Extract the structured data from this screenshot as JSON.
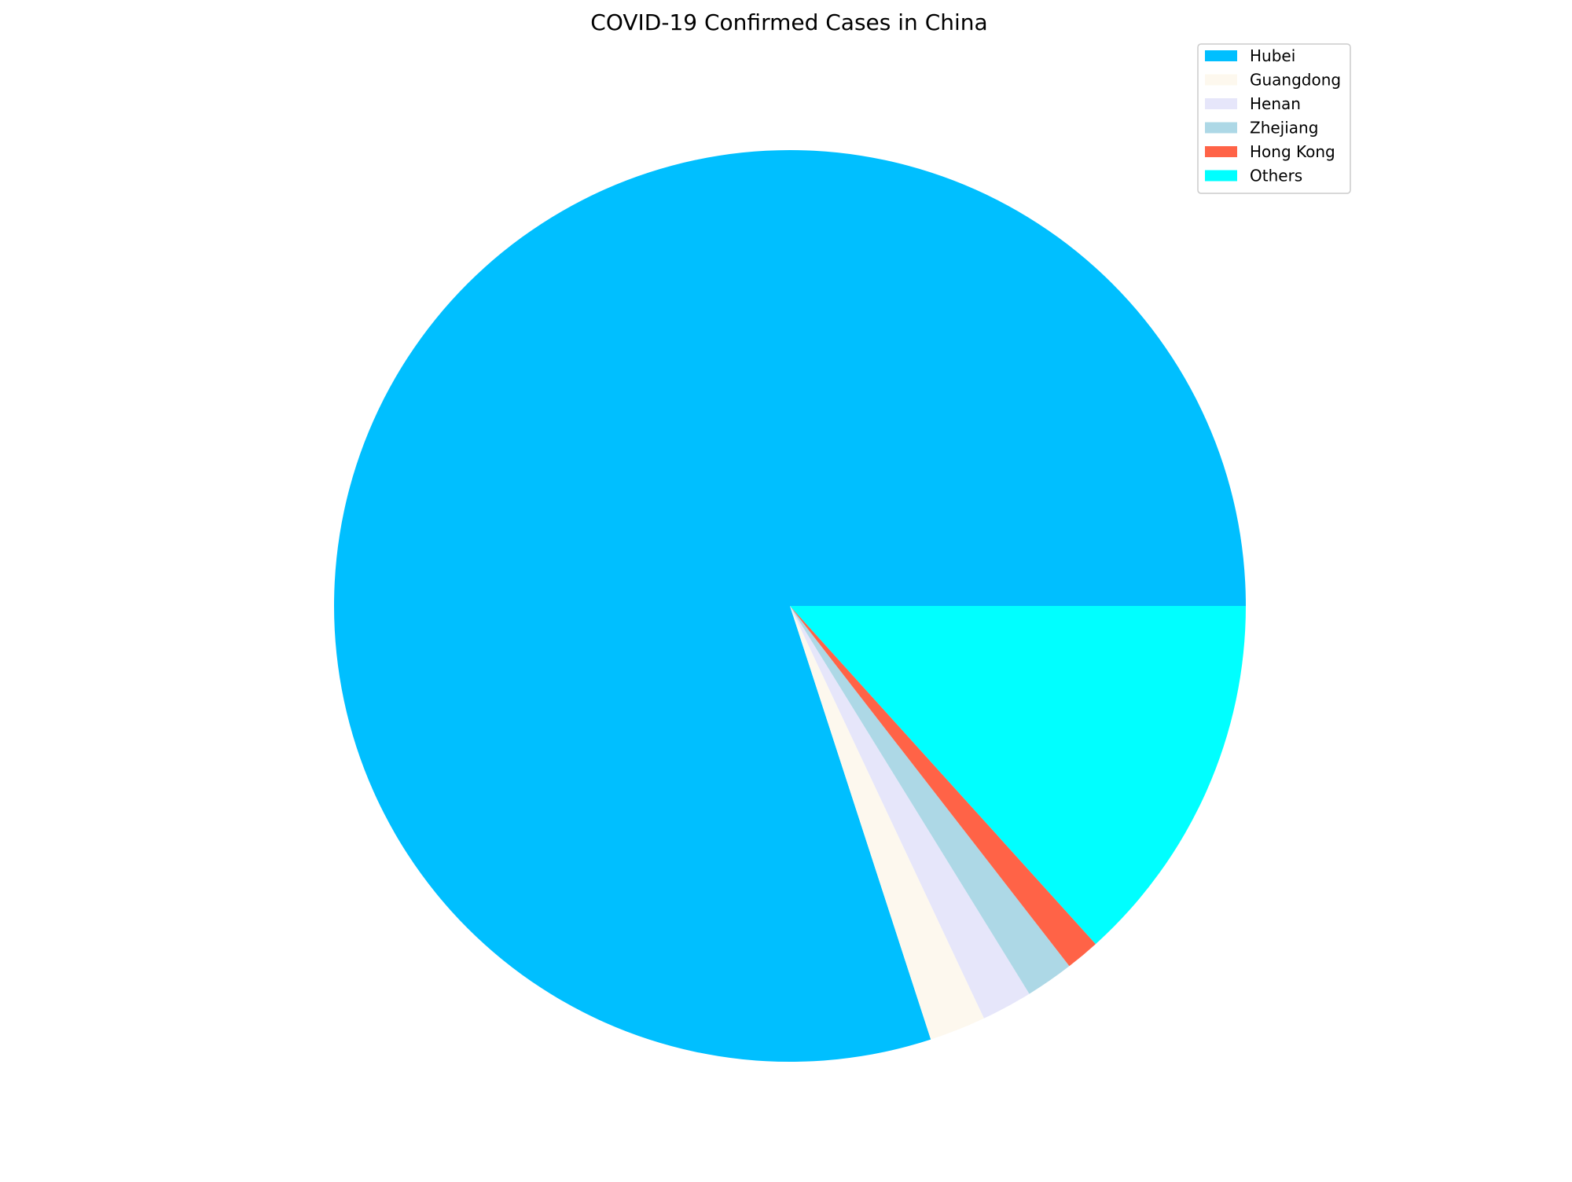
{
  "chart_data": {
    "type": "pie",
    "title": "COVID-19 Confirmed Cases in China",
    "series": [
      {
        "name": "Hubei",
        "value": 80.0,
        "color": "#00bfff"
      },
      {
        "name": "Guangdong",
        "value": 2.0,
        "color": "#fdf8ee"
      },
      {
        "name": "Henan",
        "value": 1.8,
        "color": "#e6e6fa"
      },
      {
        "name": "Zhejiang",
        "value": 1.7,
        "color": "#add8e6"
      },
      {
        "name": "Hong Kong",
        "value": 1.2,
        "color": "#ff6347"
      },
      {
        "name": "Others",
        "value": 13.3,
        "color": "#00ffff"
      }
    ],
    "legend": "top-right",
    "start_angle_deg": 0,
    "direction": "counterclockwise"
  }
}
